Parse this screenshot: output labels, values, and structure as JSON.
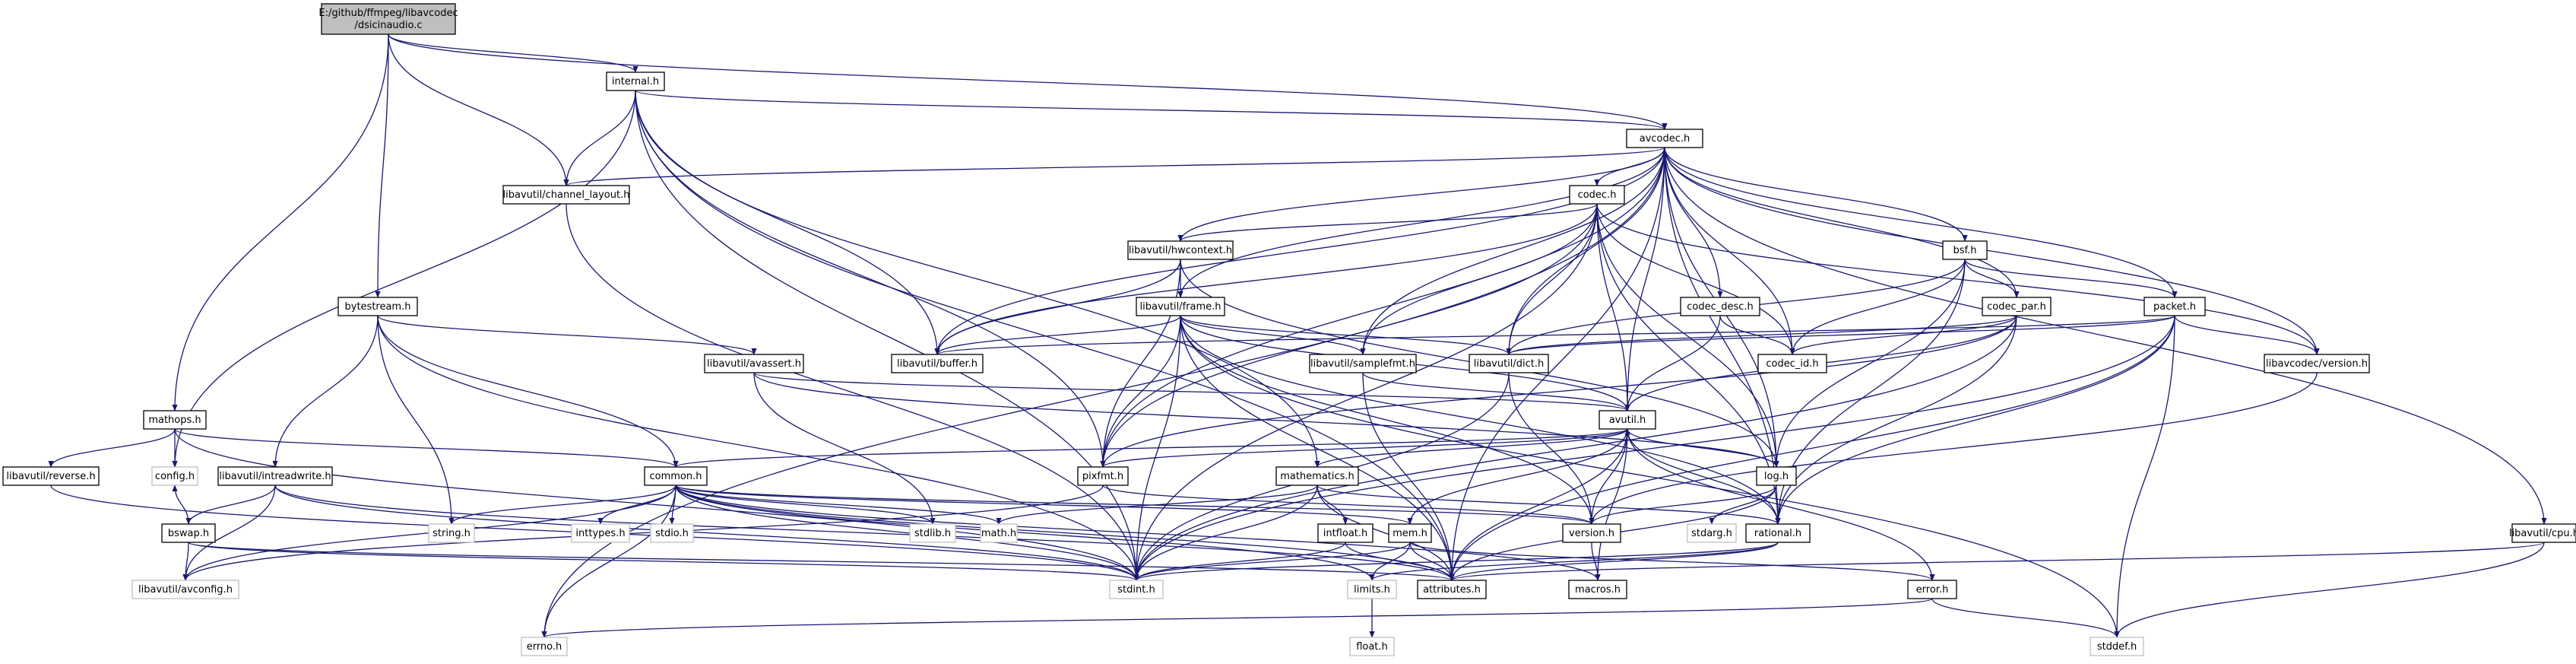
{
  "title": "",
  "colors": {
    "edge": "#191970",
    "node_border": "#000000",
    "external_border": "#bfbfbf",
    "root_fill": "#bfbfbf",
    "background": "#ffffff"
  },
  "nodes": [
    {
      "id": "root",
      "lines": [
        "E:/github/ffmpeg/libavcodec",
        "/dsicinaudio.c"
      ],
      "kind": "root"
    },
    {
      "id": "internal",
      "lines": [
        "internal.h"
      ],
      "kind": "file"
    },
    {
      "id": "avcodec",
      "lines": [
        "avcodec.h"
      ],
      "kind": "file"
    },
    {
      "id": "channel_layout",
      "lines": [
        "libavutil/channel_layout.h"
      ],
      "kind": "file"
    },
    {
      "id": "codec",
      "lines": [
        "codec.h"
      ],
      "kind": "file"
    },
    {
      "id": "hwcontext",
      "lines": [
        "libavutil/hwcontext.h"
      ],
      "kind": "file"
    },
    {
      "id": "bsf",
      "lines": [
        "bsf.h"
      ],
      "kind": "file"
    },
    {
      "id": "bytestream",
      "lines": [
        "bytestream.h"
      ],
      "kind": "file"
    },
    {
      "id": "frame",
      "lines": [
        "libavutil/frame.h"
      ],
      "kind": "file"
    },
    {
      "id": "codec_desc",
      "lines": [
        "codec_desc.h"
      ],
      "kind": "file"
    },
    {
      "id": "codec_par",
      "lines": [
        "codec_par.h"
      ],
      "kind": "file"
    },
    {
      "id": "packet",
      "lines": [
        "packet.h"
      ],
      "kind": "file"
    },
    {
      "id": "buffer",
      "lines": [
        "libavutil/buffer.h"
      ],
      "kind": "file"
    },
    {
      "id": "samplefmt",
      "lines": [
        "libavutil/samplefmt.h"
      ],
      "kind": "file"
    },
    {
      "id": "dict",
      "lines": [
        "libavutil/dict.h"
      ],
      "kind": "file"
    },
    {
      "id": "codec_id",
      "lines": [
        "codec_id.h"
      ],
      "kind": "file"
    },
    {
      "id": "avcversion",
      "lines": [
        "libavcodec/version.h"
      ],
      "kind": "file"
    },
    {
      "id": "avassert",
      "lines": [
        "libavutil/avassert.h"
      ],
      "kind": "file"
    },
    {
      "id": "mathops",
      "lines": [
        "mathops.h"
      ],
      "kind": "file"
    },
    {
      "id": "avutil",
      "lines": [
        "avutil.h"
      ],
      "kind": "file"
    },
    {
      "id": "reverse",
      "lines": [
        "libavutil/reverse.h"
      ],
      "kind": "file"
    },
    {
      "id": "config",
      "lines": [
        "config.h"
      ],
      "kind": "external"
    },
    {
      "id": "intreadwrite",
      "lines": [
        "libavutil/intreadwrite.h"
      ],
      "kind": "file"
    },
    {
      "id": "common",
      "lines": [
        "common.h"
      ],
      "kind": "file"
    },
    {
      "id": "pixfmt",
      "lines": [
        "pixfmt.h"
      ],
      "kind": "file"
    },
    {
      "id": "mathematics",
      "lines": [
        "mathematics.h"
      ],
      "kind": "file"
    },
    {
      "id": "log",
      "lines": [
        "log.h"
      ],
      "kind": "file"
    },
    {
      "id": "string",
      "lines": [
        "string.h"
      ],
      "kind": "external"
    },
    {
      "id": "inttypes",
      "lines": [
        "inttypes.h"
      ],
      "kind": "external"
    },
    {
      "id": "stdio",
      "lines": [
        "stdio.h"
      ],
      "kind": "external"
    },
    {
      "id": "stdlib",
      "lines": [
        "stdlib.h"
      ],
      "kind": "external"
    },
    {
      "id": "math",
      "lines": [
        "math.h"
      ],
      "kind": "external"
    },
    {
      "id": "version",
      "lines": [
        "version.h"
      ],
      "kind": "file"
    },
    {
      "id": "stdarg",
      "lines": [
        "stdarg.h"
      ],
      "kind": "external"
    },
    {
      "id": "rational",
      "lines": [
        "rational.h"
      ],
      "kind": "file"
    },
    {
      "id": "cpu",
      "lines": [
        "libavutil/cpu.h"
      ],
      "kind": "file"
    },
    {
      "id": "bswap",
      "lines": [
        "bswap.h"
      ],
      "kind": "file"
    },
    {
      "id": "intfloat",
      "lines": [
        "intfloat.h"
      ],
      "kind": "file"
    },
    {
      "id": "mem",
      "lines": [
        "mem.h"
      ],
      "kind": "file"
    },
    {
      "id": "avconfig",
      "lines": [
        "libavutil/avconfig.h"
      ],
      "kind": "external"
    },
    {
      "id": "stdint",
      "lines": [
        "stdint.h"
      ],
      "kind": "external"
    },
    {
      "id": "limits",
      "lines": [
        "limits.h"
      ],
      "kind": "external"
    },
    {
      "id": "attributes",
      "lines": [
        "attributes.h"
      ],
      "kind": "file"
    },
    {
      "id": "macros",
      "lines": [
        "macros.h"
      ],
      "kind": "file"
    },
    {
      "id": "error",
      "lines": [
        "error.h"
      ],
      "kind": "file"
    },
    {
      "id": "errno",
      "lines": [
        "errno.h"
      ],
      "kind": "external"
    },
    {
      "id": "float",
      "lines": [
        "float.h"
      ],
      "kind": "external"
    },
    {
      "id": "stddef",
      "lines": [
        "stddef.h"
      ],
      "kind": "external"
    }
  ],
  "edges": [
    [
      "root",
      "internal"
    ],
    [
      "root",
      "avcodec"
    ],
    [
      "root",
      "channel_layout"
    ],
    [
      "root",
      "bytestream"
    ],
    [
      "root",
      "mathops"
    ],
    [
      "internal",
      "avcodec"
    ],
    [
      "internal",
      "channel_layout"
    ],
    [
      "internal",
      "buffer"
    ],
    [
      "internal",
      "pixfmt"
    ],
    [
      "internal",
      "config"
    ],
    [
      "internal",
      "stdint"
    ],
    [
      "internal",
      "mathematics"
    ],
    [
      "internal",
      "attributes"
    ],
    [
      "avcodec",
      "channel_layout"
    ],
    [
      "avcodec",
      "codec"
    ],
    [
      "avcodec",
      "hwcontext"
    ],
    [
      "avcodec",
      "frame"
    ],
    [
      "avcodec",
      "buffer"
    ],
    [
      "avcodec",
      "samplefmt"
    ],
    [
      "avcodec",
      "dict"
    ],
    [
      "avcodec",
      "codec_desc"
    ],
    [
      "avcodec",
      "codec_id"
    ],
    [
      "avcodec",
      "codec_par"
    ],
    [
      "avcodec",
      "bsf"
    ],
    [
      "avcodec",
      "packet"
    ],
    [
      "avcodec",
      "avcversion"
    ],
    [
      "avcodec",
      "cpu"
    ],
    [
      "avcodec",
      "avutil"
    ],
    [
      "avcodec",
      "log"
    ],
    [
      "avcodec",
      "pixfmt"
    ],
    [
      "avcodec",
      "rational"
    ],
    [
      "avcodec",
      "attributes"
    ],
    [
      "avcodec",
      "errno"
    ],
    [
      "channel_layout",
      "stdint"
    ],
    [
      "codec",
      "hwcontext"
    ],
    [
      "codec",
      "buffer"
    ],
    [
      "codec",
      "dict"
    ],
    [
      "codec",
      "samplefmt"
    ],
    [
      "codec",
      "codec_id"
    ],
    [
      "codec",
      "avutil"
    ],
    [
      "codec",
      "log"
    ],
    [
      "codec",
      "pixfmt"
    ],
    [
      "codec",
      "rational"
    ],
    [
      "codec",
      "stdint"
    ],
    [
      "codec",
      "avcversion"
    ],
    [
      "hwcontext",
      "frame"
    ],
    [
      "hwcontext",
      "buffer"
    ],
    [
      "hwcontext",
      "pixfmt"
    ],
    [
      "hwcontext",
      "log"
    ],
    [
      "frame",
      "buffer"
    ],
    [
      "frame",
      "samplefmt"
    ],
    [
      "frame",
      "dict"
    ],
    [
      "frame",
      "avutil"
    ],
    [
      "frame",
      "pixfmt"
    ],
    [
      "frame",
      "rational"
    ],
    [
      "frame",
      "version"
    ],
    [
      "frame",
      "attributes"
    ],
    [
      "frame",
      "stdint"
    ],
    [
      "frame",
      "stddef"
    ],
    [
      "bsf",
      "codec_par"
    ],
    [
      "bsf",
      "packet"
    ],
    [
      "bsf",
      "dict"
    ],
    [
      "bsf",
      "codec_id"
    ],
    [
      "bsf",
      "log"
    ],
    [
      "bsf",
      "rational"
    ],
    [
      "codec_desc",
      "codec_id"
    ],
    [
      "codec_desc",
      "avutil"
    ],
    [
      "codec_par",
      "codec_id"
    ],
    [
      "codec_par",
      "avutil"
    ],
    [
      "codec_par",
      "pixfmt"
    ],
    [
      "codec_par",
      "rational"
    ],
    [
      "codec_par",
      "dict"
    ],
    [
      "codec_par",
      "stdint"
    ],
    [
      "packet",
      "buffer"
    ],
    [
      "packet",
      "dict"
    ],
    [
      "packet",
      "avcversion"
    ],
    [
      "packet",
      "rational"
    ],
    [
      "packet",
      "attributes"
    ],
    [
      "packet",
      "stdint"
    ],
    [
      "packet",
      "stddef"
    ],
    [
      "bytestream",
      "avassert"
    ],
    [
      "bytestream",
      "intreadwrite"
    ],
    [
      "bytestream",
      "common"
    ],
    [
      "bytestream",
      "string"
    ],
    [
      "bytestream",
      "stdint"
    ],
    [
      "avassert",
      "avutil"
    ],
    [
      "avassert",
      "log"
    ],
    [
      "avassert",
      "stdlib"
    ],
    [
      "mathops",
      "reverse"
    ],
    [
      "mathops",
      "config"
    ],
    [
      "mathops",
      "common"
    ],
    [
      "mathops",
      "stdint"
    ],
    [
      "reverse",
      "stdint"
    ],
    [
      "samplefmt",
      "avutil"
    ],
    [
      "samplefmt",
      "attributes"
    ],
    [
      "dict",
      "stdint"
    ],
    [
      "dict",
      "version"
    ],
    [
      "avcversion",
      "version"
    ],
    [
      "intreadwrite",
      "bswap"
    ],
    [
      "intreadwrite",
      "avconfig"
    ],
    [
      "intreadwrite",
      "attributes"
    ],
    [
      "intreadwrite",
      "stdint"
    ],
    [
      "bswap",
      "avconfig"
    ],
    [
      "bswap",
      "attributes"
    ],
    [
      "bswap",
      "config"
    ],
    [
      "bswap",
      "stdint"
    ],
    [
      "avutil",
      "common"
    ],
    [
      "avutil",
      "pixfmt"
    ],
    [
      "avutil",
      "mathematics"
    ],
    [
      "avutil",
      "log"
    ],
    [
      "avutil",
      "version"
    ],
    [
      "avutil",
      "rational"
    ],
    [
      "avutil",
      "error"
    ],
    [
      "avutil",
      "macros"
    ],
    [
      "avutil",
      "attributes"
    ],
    [
      "common",
      "string"
    ],
    [
      "common",
      "inttypes"
    ],
    [
      "common",
      "stdio"
    ],
    [
      "common",
      "stdlib"
    ],
    [
      "common",
      "math"
    ],
    [
      "common",
      "errno"
    ],
    [
      "common",
      "limits"
    ],
    [
      "common",
      "stdint"
    ],
    [
      "common",
      "attributes"
    ],
    [
      "common",
      "macros"
    ],
    [
      "common",
      "version"
    ],
    [
      "common",
      "avconfig"
    ],
    [
      "common",
      "mem"
    ],
    [
      "pixfmt",
      "avconfig"
    ],
    [
      "pixfmt",
      "version"
    ],
    [
      "mathematics",
      "math"
    ],
    [
      "mathematics",
      "intfloat"
    ],
    [
      "mathematics",
      "rational"
    ],
    [
      "mathematics",
      "attributes"
    ],
    [
      "mathematics",
      "stdint"
    ],
    [
      "log",
      "stdarg"
    ],
    [
      "log",
      "attributes"
    ],
    [
      "log",
      "version"
    ],
    [
      "rational",
      "stdint"
    ],
    [
      "rational",
      "limits"
    ],
    [
      "rational",
      "attributes"
    ],
    [
      "cpu",
      "stddef"
    ],
    [
      "cpu",
      "attributes"
    ],
    [
      "intfloat",
      "stdint"
    ],
    [
      "intfloat",
      "attributes"
    ],
    [
      "mem",
      "limits"
    ],
    [
      "mem",
      "stdint"
    ],
    [
      "mem",
      "attributes"
    ],
    [
      "mem",
      "error"
    ],
    [
      "mem",
      "avutil"
    ],
    [
      "version",
      "macros"
    ],
    [
      "error",
      "errno"
    ],
    [
      "error",
      "stddef"
    ],
    [
      "limits",
      "float"
    ]
  ]
}
